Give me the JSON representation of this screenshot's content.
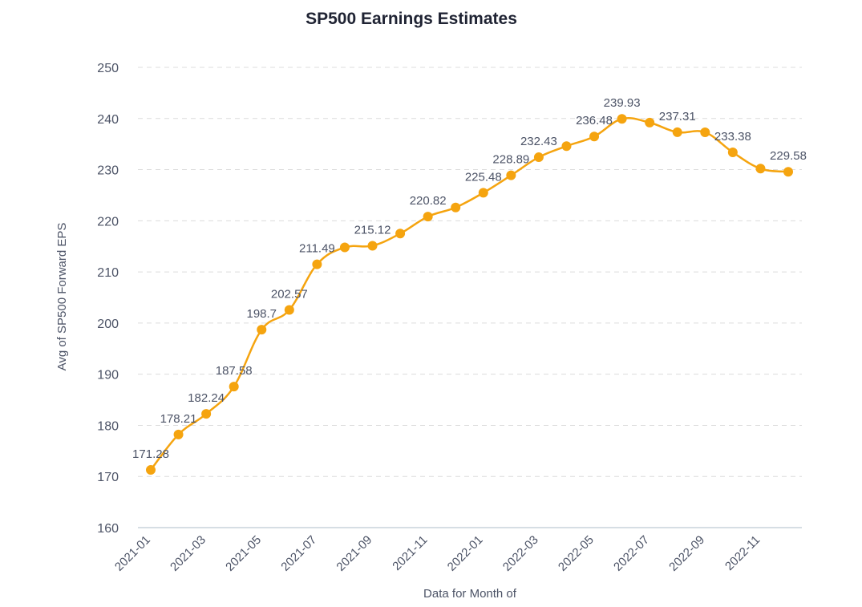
{
  "chart_data": {
    "type": "line",
    "title": "SP500 Earnings Estimates",
    "xlabel": "Data for Month of",
    "ylabel": "Avg of SP500 Forward EPS",
    "ylim": [
      160,
      250
    ],
    "yticks": [
      160,
      170,
      180,
      190,
      200,
      210,
      220,
      230,
      240,
      250
    ],
    "x": [
      "2021-01",
      "2021-02",
      "2021-03",
      "2021-04",
      "2021-05",
      "2021-06",
      "2021-07",
      "2021-08",
      "2021-09",
      "2021-10",
      "2021-11",
      "2021-12",
      "2022-01",
      "2022-02",
      "2022-03",
      "2022-04",
      "2022-05",
      "2022-06",
      "2022-07",
      "2022-08",
      "2022-09",
      "2022-10",
      "2022-11",
      "2022-12"
    ],
    "xtick_labels": [
      "2021-01",
      "2021-03",
      "2021-05",
      "2021-07",
      "2021-09",
      "2021-11",
      "2022-01",
      "2022-03",
      "2022-05",
      "2022-07",
      "2022-09",
      "2022-11"
    ],
    "series": [
      {
        "name": "Avg of SP500 Forward EPS",
        "color": "#f5a40f",
        "values": [
          171.28,
          178.21,
          182.24,
          187.58,
          198.7,
          202.57,
          211.49,
          214.8,
          215.12,
          217.5,
          220.82,
          222.6,
          225.48,
          228.89,
          232.43,
          234.6,
          236.48,
          239.93,
          239.2,
          237.31,
          237.3,
          233.38,
          230.2,
          229.58
        ],
        "labels": [
          "171.28",
          "178.21",
          "182.24",
          "187.58",
          "198.7",
          "202.57",
          "211.49",
          "",
          "215.12",
          "",
          "220.82",
          "",
          "225.48",
          "228.89",
          "232.43",
          "",
          "236.48",
          "239.93",
          "",
          "237.31",
          "",
          "233.38",
          "",
          "229.58"
        ]
      }
    ]
  }
}
